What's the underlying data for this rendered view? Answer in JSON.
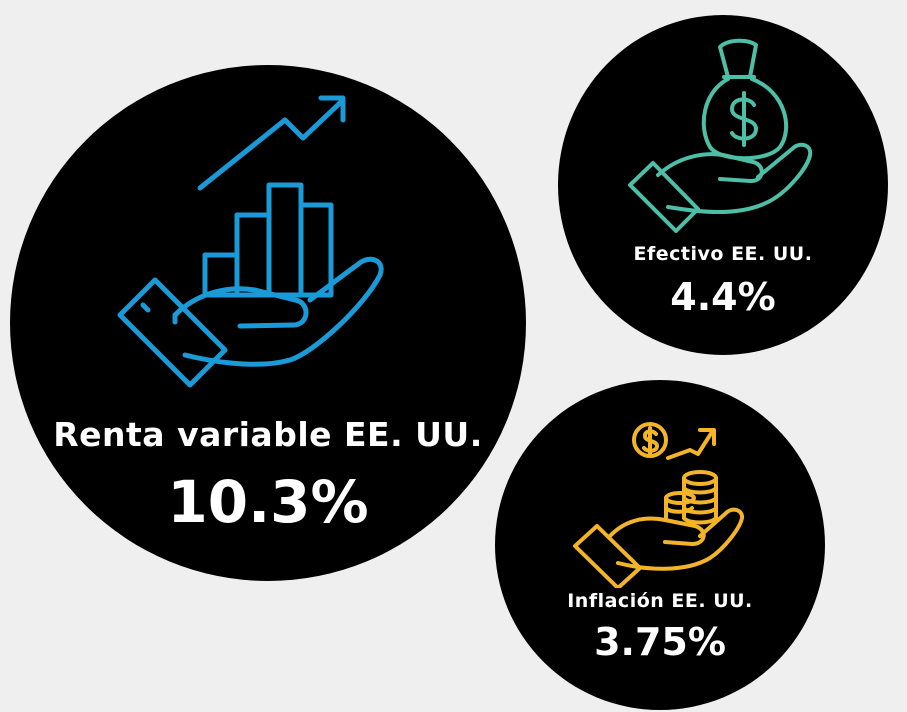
{
  "cards": {
    "equity": {
      "label": "Renta variable EE. UU.",
      "value": "10.3%",
      "icon": "hand-growth-chart-icon",
      "color": "#1a9ad6"
    },
    "cash": {
      "label": "Efectivo EE. UU.",
      "value": "4.4%",
      "icon": "hand-money-bag-icon",
      "color": "#4dbfa7"
    },
    "inflation": {
      "label": "Inflación EE. UU.",
      "value": "3.75%",
      "icon": "hand-coins-dollar-icon",
      "color": "#f3b428"
    }
  },
  "background": "#efefef",
  "circle_color": "#000000"
}
